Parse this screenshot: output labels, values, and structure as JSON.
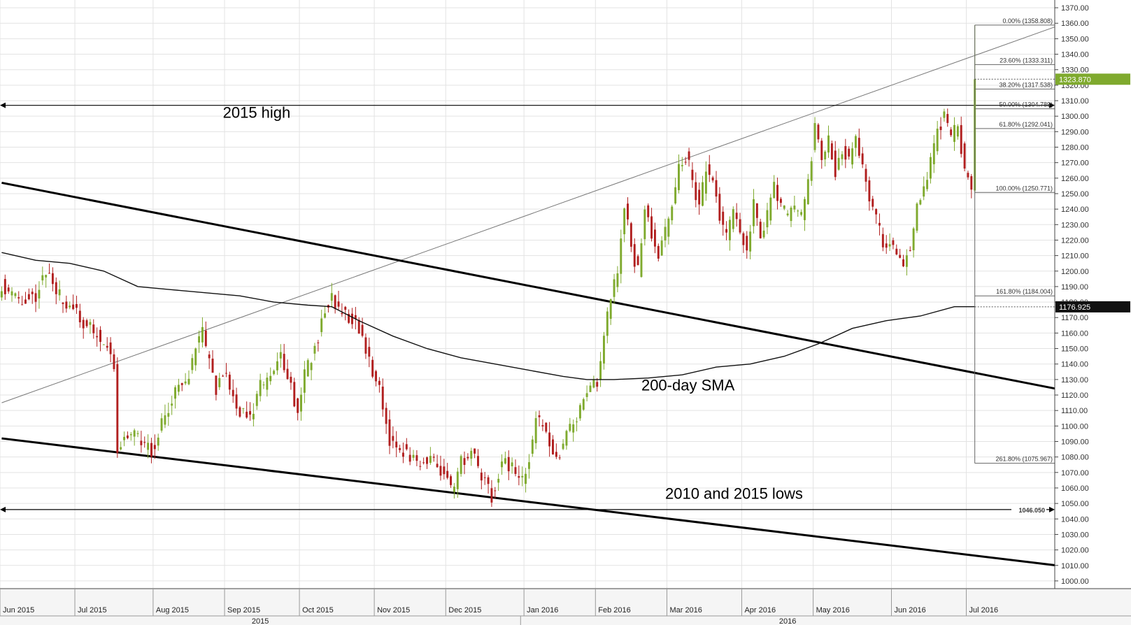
{
  "chart_data": {
    "type": "candlestick",
    "y_axis": {
      "range": [
        995,
        1375
      ],
      "position": "right",
      "ticks": [
        1000,
        1010,
        1020,
        1030,
        1040,
        1050,
        1060,
        1070,
        1080,
        1090,
        1100,
        1110,
        1120,
        1130,
        1140,
        1150,
        1160,
        1170,
        1180,
        1190,
        1200,
        1210,
        1220,
        1230,
        1240,
        1250,
        1260,
        1270,
        1280,
        1290,
        1300,
        1310,
        1320,
        1330,
        1340,
        1350,
        1360,
        1370
      ],
      "tick_labels": [
        "1000.00",
        "1010.00",
        "1020.00",
        "1030.00",
        "1040.00",
        "1050.00",
        "1060.00",
        "1070.00",
        "1080.00",
        "1090.00",
        "1100.00",
        "1110.00",
        "1120.00",
        "1130.00",
        "1140.00",
        "1150.00",
        "1160.00",
        "1170.00",
        "1180.00",
        "1190.00",
        "1200.00",
        "1210.00",
        "1220.00",
        "1230.00",
        "1240.00",
        "1250.00",
        "1260.00",
        "1270.00",
        "1280.00",
        "1290.00",
        "1300.00",
        "1310.00",
        "1320.00",
        "1330.00",
        "1340.00",
        "1350.00",
        "1360.00",
        "1370.00"
      ]
    },
    "x_axis": {
      "months": [
        {
          "label": "Jun 2015",
          "index": 0
        },
        {
          "label": "Jul 2015",
          "index": 22
        },
        {
          "label": "Aug 2015",
          "index": 45
        },
        {
          "label": "Sep 2015",
          "index": 66
        },
        {
          "label": "Oct 2015",
          "index": 88
        },
        {
          "label": "Nov 2015",
          "index": 110
        },
        {
          "label": "Dec 2015",
          "index": 131
        },
        {
          "label": "Jan 2016",
          "index": 154
        },
        {
          "label": "Feb 2016",
          "index": 175
        },
        {
          "label": "Mar 2016",
          "index": 196
        },
        {
          "label": "Apr 2016",
          "index": 218
        },
        {
          "label": "May 2016",
          "index": 239
        },
        {
          "label": "Jun 2016",
          "index": 262
        },
        {
          "label": "Jul 2016",
          "index": 284
        }
      ],
      "years": [
        {
          "label": "2015",
          "start": 0,
          "end": 153
        },
        {
          "label": "2016",
          "start": 153,
          "end": 310
        }
      ],
      "total_slots": 310
    },
    "price_path": [
      [
        0,
        1192
      ],
      [
        5,
        1180
      ],
      [
        10,
        1185
      ],
      [
        13,
        1200
      ],
      [
        16,
        1185
      ],
      [
        20,
        1178
      ],
      [
        24,
        1165
      ],
      [
        28,
        1160
      ],
      [
        31,
        1150
      ],
      [
        33,
        1140
      ],
      [
        34,
        1085
      ],
      [
        37,
        1095
      ],
      [
        40,
        1092
      ],
      [
        44,
        1085
      ],
      [
        47,
        1100
      ],
      [
        51,
        1125
      ],
      [
        54,
        1125
      ],
      [
        57,
        1150
      ],
      [
        59,
        1160
      ],
      [
        61,
        1140
      ],
      [
        63,
        1125
      ],
      [
        65,
        1135
      ],
      [
        67,
        1125
      ],
      [
        70,
        1110
      ],
      [
        73,
        1105
      ],
      [
        76,
        1125
      ],
      [
        79,
        1130
      ],
      [
        82,
        1148
      ],
      [
        85,
        1125
      ],
      [
        87,
        1110
      ],
      [
        89,
        1135
      ],
      [
        92,
        1150
      ],
      [
        95,
        1175
      ],
      [
        97,
        1182
      ],
      [
        99,
        1175
      ],
      [
        101,
        1172
      ],
      [
        104,
        1168
      ],
      [
        107,
        1150
      ],
      [
        110,
        1130
      ],
      [
        112,
        1115
      ],
      [
        114,
        1090
      ],
      [
        118,
        1085
      ],
      [
        122,
        1075
      ],
      [
        126,
        1080
      ],
      [
        130,
        1068
      ],
      [
        133,
        1057
      ],
      [
        135,
        1078
      ],
      [
        138,
        1082
      ],
      [
        141,
        1068
      ],
      [
        144,
        1055
      ],
      [
        147,
        1078
      ],
      [
        150,
        1072
      ],
      [
        153,
        1065
      ],
      [
        155,
        1080
      ],
      [
        157,
        1105
      ],
      [
        160,
        1095
      ],
      [
        163,
        1078
      ],
      [
        166,
        1095
      ],
      [
        169,
        1105
      ],
      [
        172,
        1120
      ],
      [
        175,
        1130
      ],
      [
        177,
        1158
      ],
      [
        179,
        1185
      ],
      [
        181,
        1200
      ],
      [
        183,
        1245
      ],
      [
        185,
        1215
      ],
      [
        187,
        1200
      ],
      [
        189,
        1240
      ],
      [
        191,
        1225
      ],
      [
        193,
        1210
      ],
      [
        195,
        1225
      ],
      [
        197,
        1240
      ],
      [
        199,
        1265
      ],
      [
        201,
        1275
      ],
      [
        203,
        1260
      ],
      [
        205,
        1240
      ],
      [
        207,
        1265
      ],
      [
        209,
        1260
      ],
      [
        211,
        1235
      ],
      [
        213,
        1220
      ],
      [
        215,
        1240
      ],
      [
        217,
        1225
      ],
      [
        219,
        1215
      ],
      [
        221,
        1245
      ],
      [
        223,
        1225
      ],
      [
        225,
        1235
      ],
      [
        227,
        1258
      ],
      [
        229,
        1240
      ],
      [
        231,
        1235
      ],
      [
        233,
        1242
      ],
      [
        235,
        1235
      ],
      [
        237,
        1255
      ],
      [
        239,
        1295
      ],
      [
        241,
        1275
      ],
      [
        243,
        1285
      ],
      [
        245,
        1265
      ],
      [
        247,
        1280
      ],
      [
        249,
        1270
      ],
      [
        251,
        1285
      ],
      [
        253,
        1270
      ],
      [
        255,
        1250
      ],
      [
        257,
        1235
      ],
      [
        259,
        1215
      ],
      [
        261,
        1220
      ],
      [
        263,
        1210
      ],
      [
        265,
        1205
      ],
      [
        267,
        1215
      ],
      [
        269,
        1245
      ],
      [
        271,
        1250
      ],
      [
        273,
        1270
      ],
      [
        275,
        1290
      ],
      [
        277,
        1300
      ],
      [
        279,
        1285
      ],
      [
        281,
        1295
      ],
      [
        283,
        1262
      ],
      [
        285,
        1255
      ],
      [
        286,
        1323
      ]
    ],
    "sma_200": [
      [
        0,
        1212
      ],
      [
        10,
        1207
      ],
      [
        20,
        1205
      ],
      [
        30,
        1200
      ],
      [
        40,
        1190
      ],
      [
        50,
        1188
      ],
      [
        60,
        1186
      ],
      [
        70,
        1184
      ],
      [
        80,
        1180
      ],
      [
        90,
        1178
      ],
      [
        97,
        1177
      ],
      [
        105,
        1168
      ],
      [
        115,
        1158
      ],
      [
        125,
        1150
      ],
      [
        135,
        1144
      ],
      [
        145,
        1140
      ],
      [
        155,
        1136
      ],
      [
        165,
        1132
      ],
      [
        172,
        1130
      ],
      [
        180,
        1130
      ],
      [
        190,
        1131
      ],
      [
        200,
        1133
      ],
      [
        210,
        1138
      ],
      [
        220,
        1140
      ],
      [
        230,
        1145
      ],
      [
        240,
        1153
      ],
      [
        250,
        1163
      ],
      [
        260,
        1168
      ],
      [
        270,
        1171
      ],
      [
        280,
        1177
      ],
      [
        286,
        1177
      ]
    ],
    "trendlines": [
      {
        "from": [
          0,
          1115
        ],
        "to": [
          310,
          1358
        ],
        "weight": 1
      },
      {
        "from": [
          0,
          1257
        ],
        "to": [
          310,
          1124
        ],
        "weight": 3
      },
      {
        "from": [
          0,
          1092
        ],
        "to": [
          310,
          1010
        ],
        "weight": 3
      }
    ],
    "horizontal_lines": [
      {
        "value": 1307.0,
        "label": ""
      },
      {
        "value": 1046.05,
        "label": "1046.050"
      }
    ],
    "fibonacci": {
      "start_index": 286,
      "levels": [
        {
          "value": 1358.808,
          "label": "0.00% (1358.808)"
        },
        {
          "value": 1333.311,
          "label": "23.60% (1333.311)"
        },
        {
          "value": 1317.538,
          "label": "38.20% (1317.538)"
        },
        {
          "value": 1304.789,
          "label": "50.00% (1304.789)"
        },
        {
          "value": 1292.041,
          "label": "61.80% (1292.041)"
        },
        {
          "value": 1250.771,
          "label": "100.00% (1250.771)"
        },
        {
          "value": 1184.004,
          "label": "161.80% (1184.004)"
        },
        {
          "value": 1075.967,
          "label": "261.80% (1075.967)"
        }
      ]
    },
    "price_markers": [
      {
        "value": 1323.87,
        "label": "1323.870",
        "color": "#7faa2e"
      },
      {
        "value": 1176.925,
        "label": "1176.925",
        "color": "#111111"
      }
    ],
    "annotations": [
      {
        "text": "2015 high",
        "x": 65,
        "y": 1299
      },
      {
        "text": "2010 and 2015 lows",
        "x": 195,
        "y": 1053
      },
      {
        "text": "200-day SMA",
        "x": 188,
        "y": 1123
      }
    ],
    "colors": {
      "up": "#7faa2e",
      "down": "#b11f1f",
      "grid": "#e3e3e3",
      "sma": "#111111"
    },
    "grid": true
  }
}
